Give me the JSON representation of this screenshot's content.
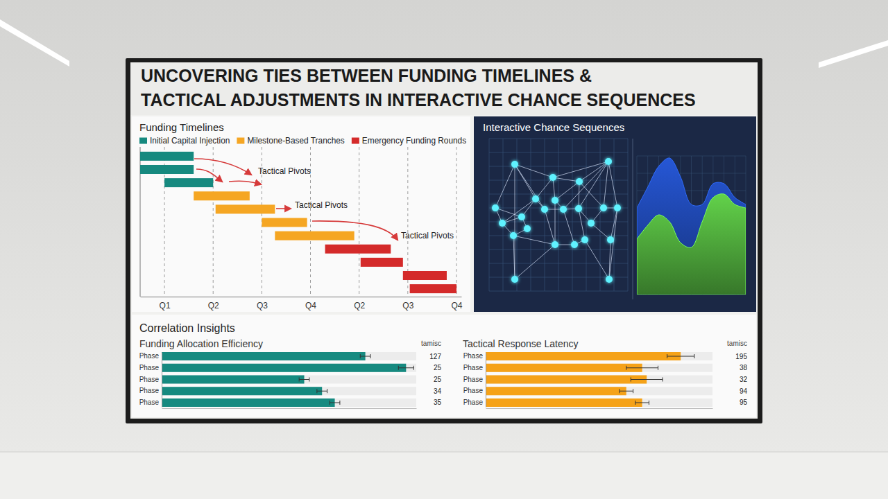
{
  "title": [
    "UNCOVERING TIES BETWEEN FUNDING TIMELINES &",
    "TACTICAL ADJUSTMENTS IN INTERACTIVE CHANCE SEQUENCES"
  ],
  "section": "Correlation Insights",
  "chart_data": [
    {
      "type": "gantt",
      "title": "Funding Timelines",
      "legend": "top",
      "grid": true,
      "tick_labels": "x",
      "xlim": [
        -0.5,
        6.1
      ],
      "xticks": [
        {
          "value": 0,
          "label": "Q1"
        },
        {
          "value": 1,
          "label": "Q2"
        },
        {
          "value": 2,
          "label": "Q3"
        },
        {
          "value": 3,
          "label": "Q4"
        },
        {
          "value": 4,
          "label": "Q2"
        },
        {
          "value": 5,
          "label": "Q3"
        },
        {
          "value": 6,
          "label": "Q4"
        }
      ],
      "series": [
        {
          "name": "Initial Capital Injection",
          "color": "#16897f",
          "start": [
            -0.5,
            -0.5,
            0
          ],
          "end": [
            0.6,
            0.6,
            1.0
          ]
        },
        {
          "name": "Milestone-Based Tranches",
          "color": "#f5a623",
          "start": [
            0.6,
            1.05,
            2.0,
            2.27
          ],
          "end": [
            1.75,
            2.27,
            2.93,
            3.9
          ]
        },
        {
          "name": "Emergency Funding Rounds",
          "color": "#d42a2a",
          "start": [
            3.3,
            4.03,
            4.9,
            5.04
          ],
          "end": [
            4.65,
            4.9,
            5.8,
            6.0
          ]
        }
      ],
      "annotations": [
        "Tactical Pivots",
        "Tactical Pivots",
        "Tactical Pivots"
      ]
    },
    {
      "type": "network",
      "title": "Interactive Chance Sequences",
      "color": "#5ef2ff",
      "grid": true,
      "tick_labels": false,
      "xlim": [
        0,
        200
      ],
      "ylim": [
        0,
        220
      ],
      "xticks": [
        0,
        20,
        40,
        60,
        80,
        100,
        120,
        140,
        160,
        180,
        200
      ],
      "yticks": [
        0,
        20,
        40,
        60,
        80,
        100,
        120,
        140,
        160,
        180,
        200,
        220
      ],
      "x": [
        37,
        92,
        172,
        130,
        67,
        9,
        95,
        165,
        47,
        80,
        107,
        129,
        185,
        19,
        147,
        35,
        95,
        123,
        138,
        175,
        37,
        173,
        55
      ],
      "y": [
        183,
        164,
        187,
        158,
        133,
        120,
        131,
        120,
        107,
        118,
        118,
        119,
        120,
        98,
        98,
        80,
        67,
        67,
        74,
        74,
        17,
        17,
        90
      ],
      "edges": [
        [
          0,
          1
        ],
        [
          0,
          4
        ],
        [
          0,
          5
        ],
        [
          0,
          9
        ],
        [
          1,
          2
        ],
        [
          1,
          3
        ],
        [
          1,
          6
        ],
        [
          1,
          4
        ],
        [
          2,
          3
        ],
        [
          2,
          7
        ],
        [
          2,
          12
        ],
        [
          2,
          10
        ],
        [
          3,
          11
        ],
        [
          3,
          6
        ],
        [
          3,
          7
        ],
        [
          4,
          9
        ],
        [
          4,
          8
        ],
        [
          5,
          13
        ],
        [
          5,
          8
        ],
        [
          6,
          10
        ],
        [
          6,
          16
        ],
        [
          7,
          12
        ],
        [
          7,
          14
        ],
        [
          8,
          13
        ],
        [
          8,
          22
        ],
        [
          9,
          10
        ],
        [
          9,
          16
        ],
        [
          10,
          11
        ],
        [
          10,
          17
        ],
        [
          11,
          14
        ],
        [
          11,
          18
        ],
        [
          12,
          19
        ],
        [
          13,
          15
        ],
        [
          14,
          19
        ],
        [
          15,
          20
        ],
        [
          15,
          16
        ],
        [
          16,
          17
        ],
        [
          17,
          18
        ],
        [
          18,
          21
        ],
        [
          19,
          21
        ],
        [
          20,
          16
        ],
        [
          22,
          15
        ],
        [
          4,
          13
        ],
        [
          2,
          11
        ],
        [
          0,
          20
        ],
        [
          12,
          21
        ]
      ]
    },
    {
      "type": "area",
      "grid": true,
      "tick_labels": false,
      "xlim": [
        0,
        10
      ],
      "ylim": [
        0,
        200
      ],
      "xticks": [
        0,
        1,
        2,
        3,
        4,
        5,
        6,
        7,
        8,
        9,
        10
      ],
      "yticks": [
        0,
        25,
        50,
        75,
        100,
        125,
        150,
        175,
        200
      ],
      "x": [
        0,
        1,
        2,
        3,
        4,
        5,
        6,
        7,
        8,
        9,
        10
      ],
      "series": [
        {
          "color": "#2657d6",
          "values": [
            125,
            155,
            185,
            197,
            170,
            130,
            130,
            160,
            160,
            140,
            130
          ]
        },
        {
          "color": "#62d24a",
          "values": [
            80,
            100,
            115,
            105,
            75,
            68,
            105,
            140,
            145,
            130,
            125
          ]
        }
      ]
    },
    {
      "type": "bar",
      "orientation": "horizontal",
      "title": "Funding Allocation Efficiency",
      "tick_labels": "y",
      "categories": [
        "Phase",
        "Phase",
        "Phase",
        "Phase",
        "Phase"
      ],
      "values": [
        80,
        96,
        56,
        63,
        68
      ],
      "errors": [
        2,
        3,
        2,
        2,
        2
      ],
      "color": "#168a80",
      "xlim": [
        0,
        100
      ],
      "table": {
        "header": "tamisc",
        "values": [
          127,
          25,
          25,
          34,
          35
        ]
      }
    },
    {
      "type": "bar",
      "orientation": "horizontal",
      "title": "Tactical Response Latency",
      "tick_labels": "y",
      "categories": [
        "Phase",
        "Phase",
        "Phase",
        "Phase",
        "Phase"
      ],
      "values": [
        86,
        69,
        71,
        62,
        69
      ],
      "errors": [
        6,
        7,
        7,
        3,
        3
      ],
      "color": "#f5a218",
      "xlim": [
        0,
        100
      ],
      "table": {
        "header": "tamisc",
        "values": [
          195,
          38,
          32,
          94,
          95
        ]
      }
    }
  ]
}
